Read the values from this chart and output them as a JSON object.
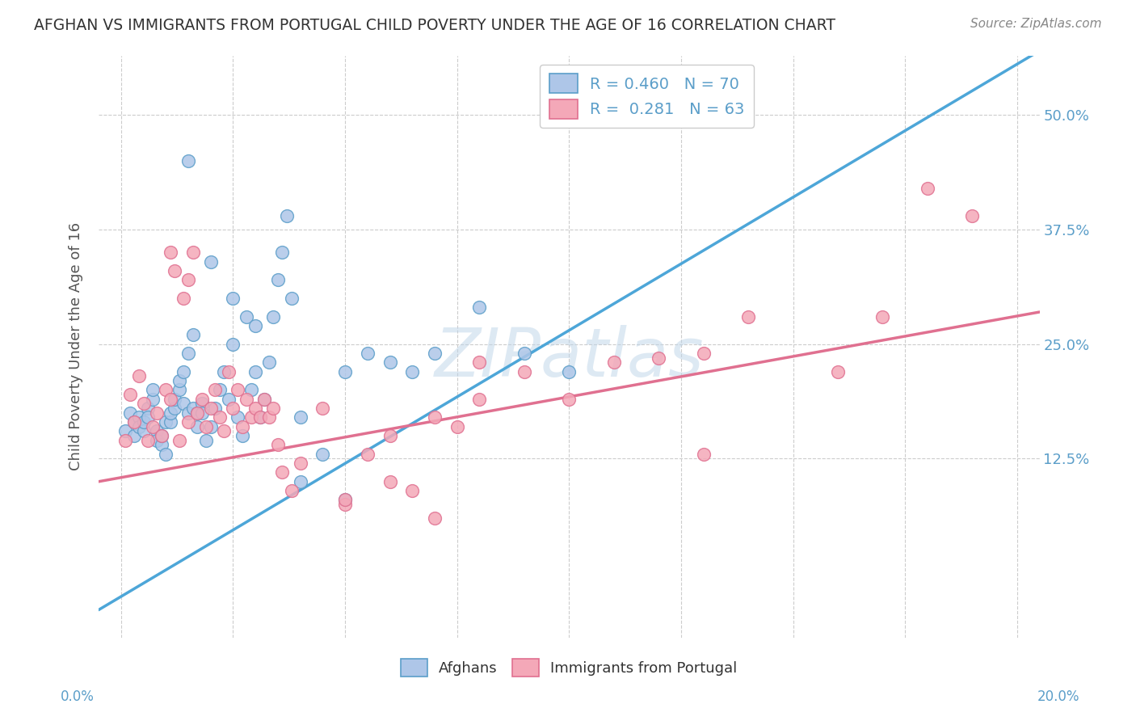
{
  "title": "AFGHAN VS IMMIGRANTS FROM PORTUGAL CHILD POVERTY UNDER THE AGE OF 16 CORRELATION CHART",
  "source": "Source: ZipAtlas.com",
  "ylabel": "Child Poverty Under the Age of 16",
  "ytick_values": [
    0.0,
    0.125,
    0.25,
    0.375,
    0.5
  ],
  "xmin": -0.005,
  "xmax": 0.205,
  "ymin": -0.07,
  "ymax": 0.565,
  "blue_line_x": [
    -0.005,
    0.205
  ],
  "blue_line_y": [
    -0.04,
    0.57
  ],
  "pink_line_x": [
    -0.005,
    0.205
  ],
  "pink_line_y": [
    0.1,
    0.285
  ],
  "blue_scatter_color": "#aec6e8",
  "blue_edge_color": "#5b9ec9",
  "pink_scatter_color": "#f4a8b8",
  "pink_edge_color": "#e07090",
  "blue_line_color": "#4da6d8",
  "pink_line_color": "#e07090",
  "watermark": "ZIPatlas",
  "background_color": "#ffffff",
  "grid_color": "#cccccc",
  "title_color": "#333333",
  "axis_label_color": "#5b9ec9",
  "blue_scatter_x": [
    0.001,
    0.002,
    0.003,
    0.003,
    0.004,
    0.004,
    0.005,
    0.005,
    0.006,
    0.006,
    0.007,
    0.007,
    0.008,
    0.008,
    0.009,
    0.009,
    0.01,
    0.01,
    0.011,
    0.011,
    0.012,
    0.012,
    0.013,
    0.013,
    0.014,
    0.014,
    0.015,
    0.015,
    0.016,
    0.016,
    0.017,
    0.017,
    0.018,
    0.018,
    0.019,
    0.02,
    0.021,
    0.022,
    0.023,
    0.024,
    0.025,
    0.026,
    0.027,
    0.028,
    0.029,
    0.03,
    0.031,
    0.032,
    0.033,
    0.034,
    0.035,
    0.036,
    0.037,
    0.038,
    0.04,
    0.045,
    0.05,
    0.055,
    0.06,
    0.065,
    0.07,
    0.08,
    0.09,
    0.1,
    0.015,
    0.02,
    0.025,
    0.03,
    0.04,
    0.05
  ],
  "blue_scatter_y": [
    0.155,
    0.175,
    0.15,
    0.165,
    0.17,
    0.16,
    0.155,
    0.165,
    0.18,
    0.17,
    0.19,
    0.2,
    0.155,
    0.145,
    0.14,
    0.15,
    0.13,
    0.165,
    0.165,
    0.175,
    0.18,
    0.19,
    0.2,
    0.21,
    0.22,
    0.185,
    0.24,
    0.175,
    0.26,
    0.18,
    0.16,
    0.175,
    0.185,
    0.175,
    0.145,
    0.16,
    0.18,
    0.2,
    0.22,
    0.19,
    0.25,
    0.17,
    0.15,
    0.28,
    0.2,
    0.22,
    0.17,
    0.19,
    0.23,
    0.28,
    0.32,
    0.35,
    0.39,
    0.3,
    0.17,
    0.13,
    0.22,
    0.24,
    0.23,
    0.22,
    0.24,
    0.29,
    0.24,
    0.22,
    0.45,
    0.34,
    0.3,
    0.27,
    0.1,
    0.08
  ],
  "pink_scatter_x": [
    0.001,
    0.002,
    0.003,
    0.004,
    0.005,
    0.006,
    0.007,
    0.008,
    0.009,
    0.01,
    0.011,
    0.011,
    0.012,
    0.013,
    0.014,
    0.015,
    0.015,
    0.016,
    0.017,
    0.018,
    0.019,
    0.02,
    0.021,
    0.022,
    0.023,
    0.024,
    0.025,
    0.026,
    0.027,
    0.028,
    0.029,
    0.03,
    0.031,
    0.032,
    0.033,
    0.034,
    0.035,
    0.036,
    0.038,
    0.04,
    0.045,
    0.05,
    0.055,
    0.06,
    0.065,
    0.07,
    0.075,
    0.08,
    0.09,
    0.1,
    0.11,
    0.12,
    0.13,
    0.14,
    0.16,
    0.17,
    0.18,
    0.19,
    0.05,
    0.06,
    0.07,
    0.08,
    0.13
  ],
  "pink_scatter_y": [
    0.145,
    0.195,
    0.165,
    0.215,
    0.185,
    0.145,
    0.16,
    0.175,
    0.15,
    0.2,
    0.35,
    0.19,
    0.33,
    0.145,
    0.3,
    0.32,
    0.165,
    0.35,
    0.175,
    0.19,
    0.16,
    0.18,
    0.2,
    0.17,
    0.155,
    0.22,
    0.18,
    0.2,
    0.16,
    0.19,
    0.17,
    0.18,
    0.17,
    0.19,
    0.17,
    0.18,
    0.14,
    0.11,
    0.09,
    0.12,
    0.18,
    0.075,
    0.13,
    0.15,
    0.09,
    0.17,
    0.16,
    0.19,
    0.22,
    0.19,
    0.23,
    0.235,
    0.24,
    0.28,
    0.22,
    0.28,
    0.42,
    0.39,
    0.08,
    0.1,
    0.06,
    0.23,
    0.13
  ]
}
